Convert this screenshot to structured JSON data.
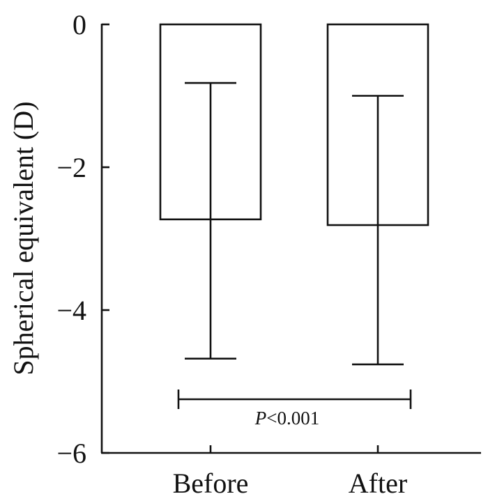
{
  "chart_data": {
    "type": "bar",
    "categories": [
      "Before",
      "After"
    ],
    "values": [
      -2.73,
      -2.81
    ],
    "error_low": [
      -4.68,
      -4.76
    ],
    "error_high": [
      -0.82,
      -1.0
    ],
    "ylabel": "Spherical equivalent (D)",
    "xlabel": "",
    "ylim": [
      -6,
      0
    ],
    "yticks": [
      0,
      -2,
      -4,
      -6
    ],
    "ytick_labels": [
      "0",
      "−2",
      "−4",
      "−6"
    ],
    "grid": false,
    "annotation": {
      "italic_part": "P",
      "rest": "<0.001"
    }
  },
  "colors": {
    "axis": "#111111",
    "bar_fill": "#ffffff",
    "bar_stroke": "#111111"
  }
}
